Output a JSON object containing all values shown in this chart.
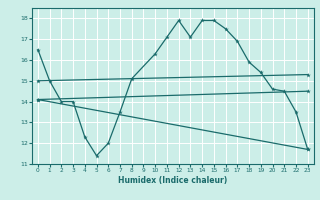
{
  "xlabel": "Humidex (Indice chaleur)",
  "ylabel": "",
  "bg_color": "#cceee8",
  "grid_color": "#ffffff",
  "line_color": "#1a6b6b",
  "xlim": [
    -0.5,
    23.5
  ],
  "ylim": [
    11,
    18.5
  ],
  "yticks": [
    11,
    12,
    13,
    14,
    15,
    16,
    17,
    18
  ],
  "xticks": [
    0,
    1,
    2,
    3,
    4,
    5,
    6,
    7,
    8,
    9,
    10,
    11,
    12,
    13,
    14,
    15,
    16,
    17,
    18,
    19,
    20,
    21,
    22,
    23
  ],
  "line1_x": [
    0,
    1,
    2,
    3,
    4,
    5,
    6,
    7,
    8,
    10,
    11,
    12,
    13,
    14,
    15,
    16,
    17,
    18,
    19,
    20,
    21,
    22,
    23
  ],
  "line1_y": [
    16.5,
    15.0,
    14.0,
    14.0,
    12.3,
    11.4,
    12.0,
    13.5,
    15.1,
    16.3,
    17.1,
    17.9,
    17.1,
    17.9,
    17.9,
    17.5,
    16.9,
    15.9,
    15.4,
    14.6,
    14.5,
    13.5,
    11.7
  ],
  "line2_x": [
    0,
    23
  ],
  "line2_y": [
    15.0,
    15.3
  ],
  "line3_x": [
    0,
    23
  ],
  "line3_y": [
    14.1,
    14.5
  ],
  "line4_x": [
    0,
    23
  ],
  "line4_y": [
    14.1,
    11.7
  ]
}
